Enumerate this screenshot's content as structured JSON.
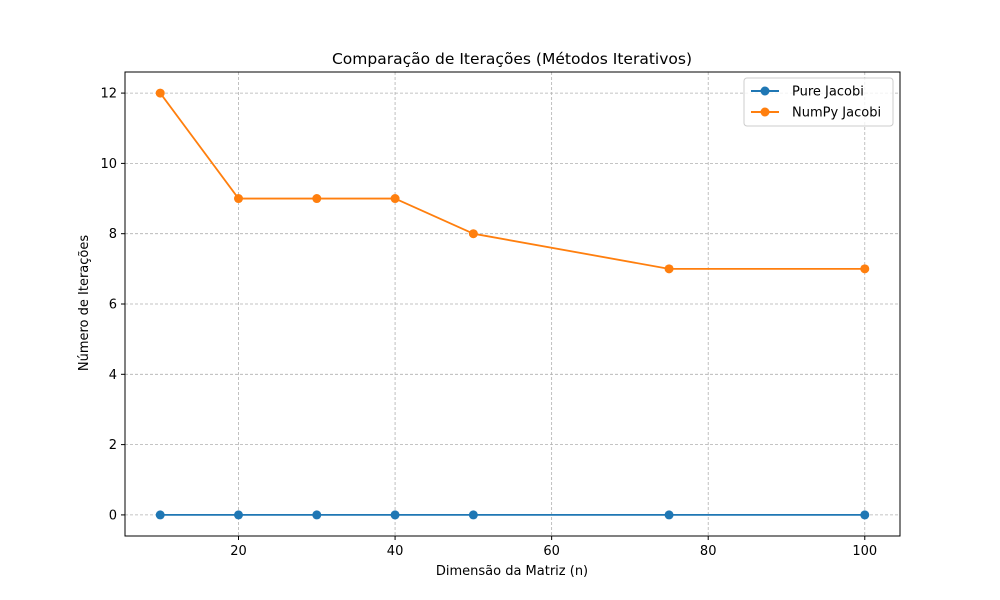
{
  "chart_data": {
    "type": "line",
    "title": "Comparação de Iterações (Métodos Iterativos)",
    "xlabel": "Dimensão da Matriz (n)",
    "ylabel": "Número de Iterações",
    "x": [
      10,
      20,
      30,
      40,
      50,
      75,
      100
    ],
    "xlim": [
      5.5,
      104.5
    ],
    "ylim": [
      -0.6,
      12.6
    ],
    "xticks": [
      20,
      40,
      60,
      80,
      100
    ],
    "yticks": [
      0,
      2,
      4,
      6,
      8,
      10,
      12
    ],
    "grid": true,
    "legend_position": "top-right",
    "series": [
      {
        "name": "Pure Jacobi",
        "color": "#1f77b4",
        "marker": "circle",
        "values": [
          0,
          0,
          0,
          0,
          0,
          0,
          0
        ]
      },
      {
        "name": "NumPy Jacobi",
        "color": "#ff7f0e",
        "marker": "circle",
        "values": [
          12,
          9,
          9,
          9,
          8,
          7,
          7
        ]
      }
    ]
  }
}
